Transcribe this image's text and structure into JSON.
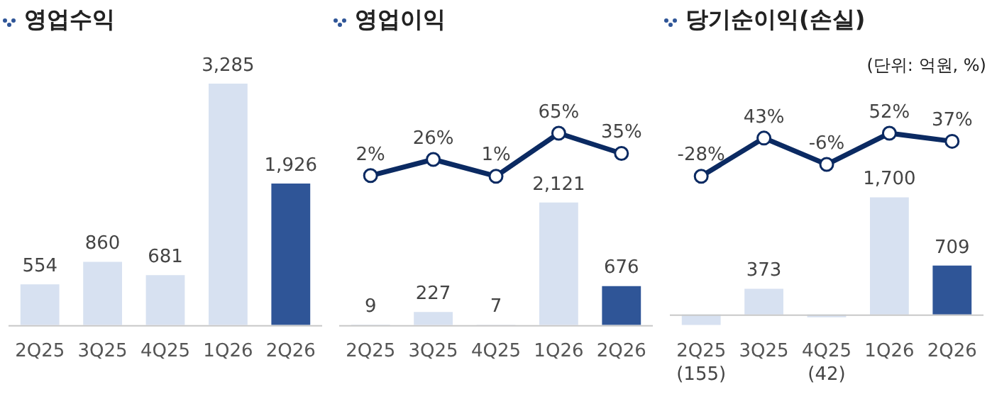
{
  "chart_data": [
    {
      "type": "bar",
      "title": "영업수익",
      "categories": [
        "2Q25",
        "3Q25",
        "4Q25",
        "1Q26",
        "2Q26"
      ],
      "series": [
        {
          "values": [
            554,
            860,
            681,
            3285,
            1926
          ],
          "colors": [
            "#d7e1f1",
            "#d7e1f1",
            "#d7e1f1",
            "#d7e1f1",
            "#2f5597"
          ],
          "value_labels": [
            "554",
            "860",
            "681",
            "3,285",
            "1,926"
          ]
        }
      ]
    },
    {
      "type": "line",
      "title": "영업이익",
      "categories": [
        null,
        null,
        null,
        null,
        null
      ],
      "tick_labels": false,
      "marker": "circle",
      "series": [
        {
          "color": "#0b2a62",
          "values": [
            2,
            26,
            1,
            65,
            35
          ],
          "value_labels": [
            "2%",
            "26%",
            "1%",
            "65%",
            "35%"
          ]
        }
      ]
    },
    {
      "type": "bar",
      "categories": [
        "2Q25",
        "3Q25",
        "4Q25",
        "1Q26",
        "2Q26"
      ],
      "series": [
        {
          "values": [
            9,
            227,
            7,
            2121,
            676
          ],
          "colors": [
            "#d7e1f1",
            "#d7e1f1",
            "#d7e1f1",
            "#d7e1f1",
            "#2f5597"
          ],
          "value_labels": [
            "9",
            "227",
            "7",
            "2,121",
            "676"
          ]
        }
      ]
    },
    {
      "type": "line",
      "title": "당기순이익(손실)",
      "annotations": [
        "(단위: 억원, %)"
      ],
      "categories": [
        null,
        null,
        null,
        null,
        null
      ],
      "tick_labels": false,
      "marker": "circle",
      "series": [
        {
          "color": "#0b2a62",
          "values": [
            -28,
            43,
            -6,
            52,
            37
          ],
          "value_labels": [
            "-28%",
            "43%",
            "-6%",
            "52%",
            "37%"
          ]
        }
      ]
    },
    {
      "type": "bar",
      "categories": [
        "2Q25",
        "3Q25",
        "4Q25",
        "1Q26",
        "2Q26"
      ],
      "series": [
        {
          "values": [
            -155,
            373,
            -42,
            1700,
            709
          ],
          "colors": [
            "#d7e1f1",
            "#d7e1f1",
            "#d7e1f1",
            "#d7e1f1",
            "#2f5597"
          ],
          "value_labels": [
            "(155)",
            "373",
            "(42)",
            "1,700",
            "709"
          ]
        }
      ]
    }
  ]
}
